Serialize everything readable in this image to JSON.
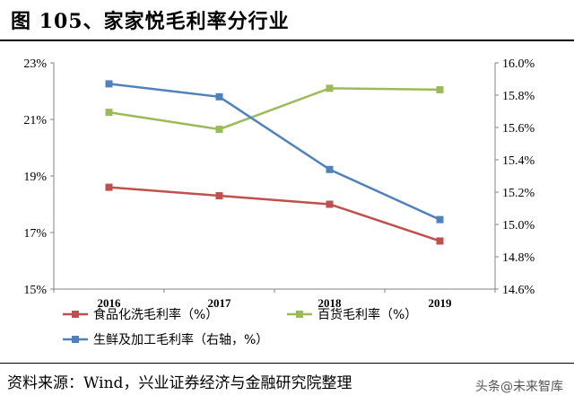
{
  "figure_title": "图 105、家家悦毛利率分行业",
  "source_text": "资料来源：Wind，兴业证券经济与金融研究院整理",
  "watermark_text": "头条@未来智库",
  "chart_data": {
    "type": "line",
    "categories": [
      "2016",
      "2017",
      "2018",
      "2019"
    ],
    "left_axis": {
      "ticks": [
        "23%",
        "21%",
        "19%",
        "17%",
        "15%"
      ],
      "range": [
        15,
        23
      ]
    },
    "right_axis": {
      "ticks": [
        "16.0%",
        "15.8%",
        "15.6%",
        "15.4%",
        "15.2%",
        "15.0%",
        "14.8%",
        "14.6%"
      ],
      "range": [
        14.6,
        16.0
      ]
    },
    "series": [
      {
        "name": "食品化洗毛利率（%）",
        "axis": "left",
        "color": "#c0504d",
        "values": [
          18.6,
          18.3,
          18.0,
          16.7
        ]
      },
      {
        "name": "百货毛利率（%）",
        "axis": "left",
        "color": "#9bbb59",
        "values": [
          21.25,
          20.65,
          22.1,
          22.05
        ]
      },
      {
        "name": "生鲜及加工毛利率（右轴，%）",
        "axis": "right",
        "color": "#4f81bd",
        "values": [
          15.87,
          15.79,
          15.34,
          15.03
        ]
      }
    ],
    "grid": false,
    "legend_position": "bottom"
  }
}
